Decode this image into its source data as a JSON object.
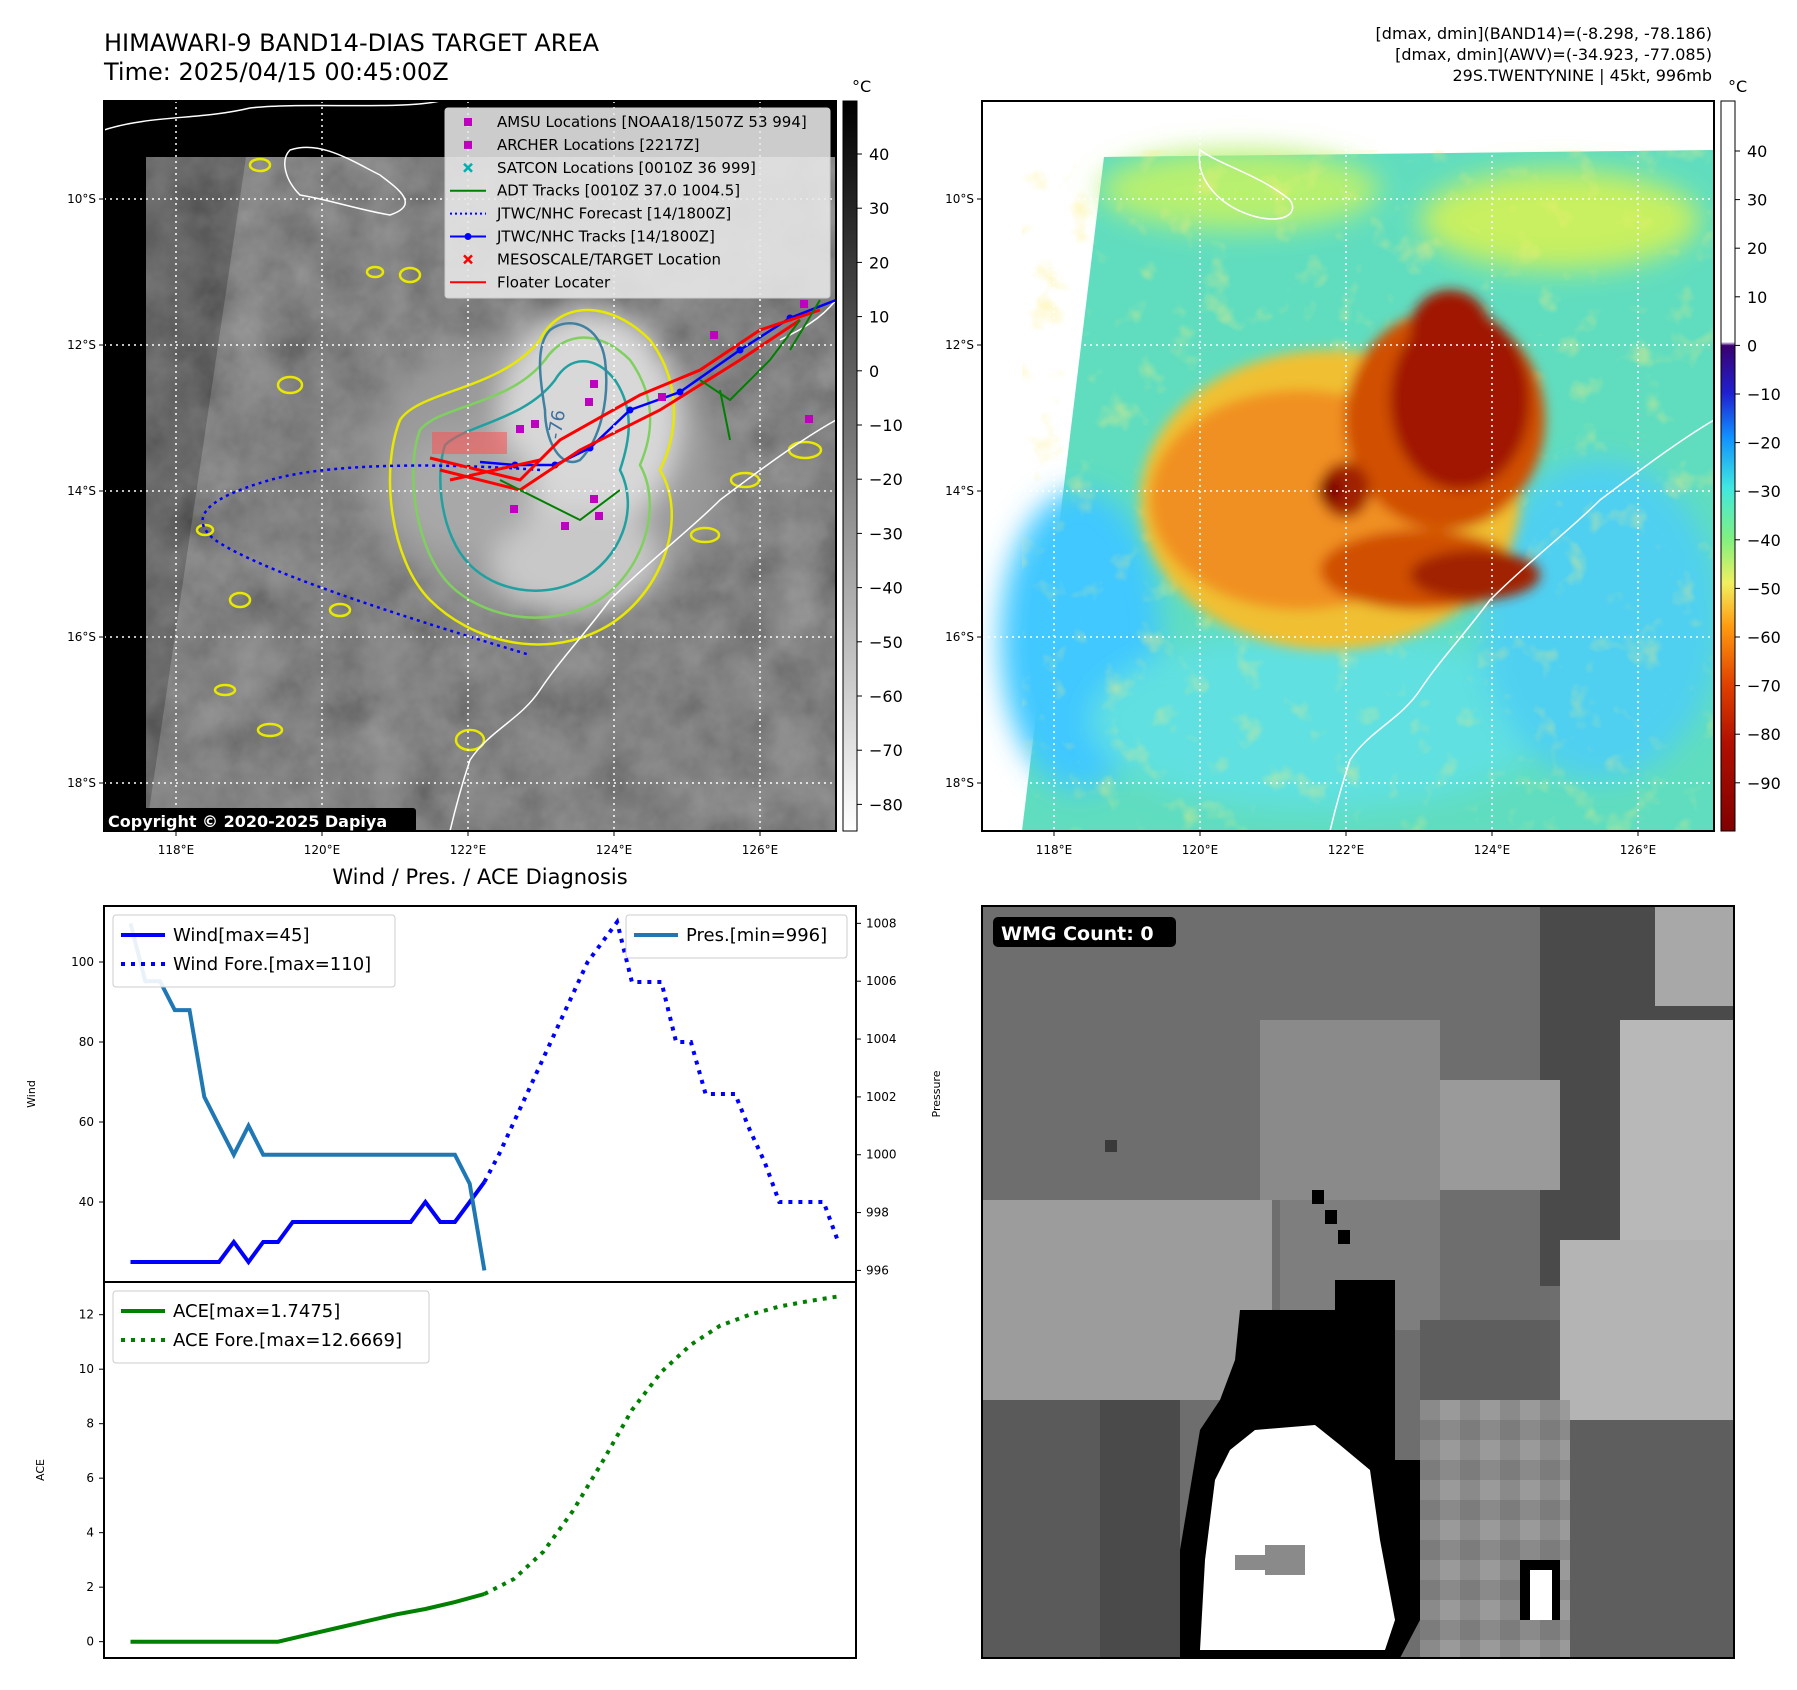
{
  "header": {
    "title_line1": "HIMAWARI-9 BAND14-DIAS TARGET AREA",
    "title_line2": "Time: 2025/04/15 00:45:00Z",
    "info_line1": "[dmax, dmin](BAND14)=(-8.298, -78.186)",
    "info_line2": "[dmax, dmin](AWV)=(-34.923, -77.085)",
    "info_line3": "29S.TWENTYNINE | 45kt, 996mb"
  },
  "map_common": {
    "lon_labels": [
      "118°E",
      "120°E",
      "122°E",
      "124°E",
      "126°E"
    ],
    "lat_labels": [
      "10°S",
      "12°S",
      "14°S",
      "16°S",
      "18°S"
    ]
  },
  "panel_ir": {
    "copyright": "Copyright © 2020-2025 Dapiya",
    "colorbar_unit": "°C",
    "colorbar_ticks": [
      "40",
      "30",
      "20",
      "10",
      "0",
      "−10",
      "−20",
      "−30",
      "−40",
      "−50",
      "−60",
      "−70",
      "−80"
    ],
    "contour_label": "-76",
    "legend": [
      {
        "label": "AMSU Locations [NOAA18/1507Z 53 994]",
        "marker": "square",
        "color": "#c000c0"
      },
      {
        "label": "ARCHER Locations [2217Z]",
        "marker": "square",
        "color": "#c000c0"
      },
      {
        "label": "SATCON Locations [0010Z 36 999]",
        "marker": "x",
        "color": "#00b0b0"
      },
      {
        "label": "ADT Tracks [0010Z 37.0 1004.5]",
        "marker": "line",
        "color": "#008000"
      },
      {
        "label": "JTWC/NHC Forecast [14/1800Z]",
        "marker": "dotted",
        "color": "#0000ff"
      },
      {
        "label": "JTWC/NHC Tracks [14/1800Z]",
        "marker": "dotline",
        "color": "#0000ff"
      },
      {
        "label": "MESOSCALE/TARGET Location",
        "marker": "x",
        "color": "#ff0000"
      },
      {
        "label": "Floater Locater",
        "marker": "line",
        "color": "#ff0000"
      }
    ]
  },
  "panel_color": {
    "colorbar_unit": "°C",
    "colorbar_ticks": [
      "40",
      "30",
      "20",
      "10",
      "0",
      "−10",
      "−20",
      "−30",
      "−40",
      "−50",
      "−60",
      "−70",
      "−80",
      "−90"
    ]
  },
  "panel_wmg": {
    "badge": "WMG Count: 0"
  },
  "chart_data": [
    {
      "type": "line",
      "title": "Wind / Pres. / ACE Diagnosis",
      "ylabel": "Wind",
      "y2label": "Pressure",
      "ylim": [
        20,
        114
      ],
      "y2lim": [
        995.6,
        1008.6
      ],
      "yticks": [
        40,
        60,
        80,
        100
      ],
      "y2ticks": [
        996,
        998,
        1000,
        1002,
        1004,
        1006,
        1008
      ],
      "x": [
        0,
        1,
        2,
        3,
        4,
        5,
        6,
        7,
        8,
        9,
        10,
        11,
        12,
        13,
        14,
        15,
        16,
        17,
        18,
        19,
        20,
        21,
        22,
        23,
        24,
        25,
        26,
        27,
        28,
        29,
        30,
        31,
        32,
        33,
        34,
        35,
        36,
        37,
        38,
        39,
        40,
        41,
        42,
        43,
        44,
        45,
        46,
        47,
        48
      ],
      "xlim": [
        -1.8,
        49.2
      ],
      "series": [
        {
          "name": "Wind[max=45]",
          "axis": "left",
          "style": "solid",
          "color": "#0000ff",
          "x": [
            0,
            1,
            2,
            3,
            4,
            5,
            6,
            7,
            8,
            9,
            10,
            11,
            12,
            13,
            14,
            15,
            16,
            17,
            18,
            19,
            20,
            21,
            22,
            23,
            24
          ],
          "values": [
            25,
            25,
            25,
            25,
            25,
            25,
            25,
            30,
            25,
            30,
            30,
            35,
            35,
            35,
            35,
            35,
            35,
            35,
            35,
            35,
            40,
            35,
            35,
            40,
            45
          ]
        },
        {
          "name": "Wind Fore.[max=110]",
          "axis": "left",
          "style": "dotted",
          "color": "#0000ff",
          "x": [
            24,
            25,
            26,
            27,
            28,
            29,
            30,
            31,
            32,
            33,
            34,
            35,
            36,
            37,
            38,
            39,
            40,
            41,
            42,
            43,
            44,
            45,
            46,
            47,
            48
          ],
          "values": [
            45,
            52,
            60,
            68,
            76,
            84,
            92,
            100,
            105,
            110,
            95,
            95,
            95,
            80,
            80,
            67,
            67,
            67,
            58,
            50,
            40,
            40,
            40,
            40,
            30
          ]
        },
        {
          "name": "Pres.[min=996]",
          "axis": "right",
          "style": "solid",
          "color": "#1f77b4",
          "x": [
            0,
            1,
            2,
            3,
            4,
            5,
            6,
            7,
            8,
            9,
            10,
            11,
            12,
            13,
            14,
            15,
            16,
            17,
            18,
            19,
            20,
            21,
            22,
            23,
            24
          ],
          "values": [
            1008,
            1006,
            1006,
            1005,
            1005,
            1002,
            1001,
            1000,
            1001,
            1000,
            1000,
            1000,
            1000,
            1000,
            1000,
            1000,
            1000,
            1000,
            1000,
            1000,
            1000,
            1000,
            1000,
            999,
            996
          ]
        }
      ],
      "legend_left": "upper-left",
      "legend_right": "upper-right"
    },
    {
      "type": "line",
      "ylabel": "ACE",
      "ylim": [
        -0.6,
        13.2
      ],
      "yticks": [
        0,
        2,
        4,
        6,
        8,
        10,
        12
      ],
      "xlim": [
        -1.8,
        49.2
      ],
      "series": [
        {
          "name": "ACE[max=1.7475]",
          "style": "solid",
          "color": "#008000",
          "x": [
            0,
            2,
            4,
            6,
            8,
            10,
            12,
            14,
            16,
            18,
            20,
            22,
            24
          ],
          "values": [
            0,
            0,
            0,
            0,
            0,
            0,
            0.25,
            0.5,
            0.75,
            1.0,
            1.2,
            1.45,
            1.75
          ]
        },
        {
          "name": "ACE Fore.[max=12.6669]",
          "style": "dotted",
          "color": "#008000",
          "x": [
            24,
            26,
            28,
            30,
            32,
            34,
            36,
            38,
            40,
            42,
            44,
            46,
            48
          ],
          "values": [
            1.75,
            2.3,
            3.3,
            4.8,
            6.6,
            8.5,
            9.9,
            10.9,
            11.6,
            12.0,
            12.3,
            12.5,
            12.67
          ]
        }
      ],
      "legend": "upper-left"
    }
  ]
}
